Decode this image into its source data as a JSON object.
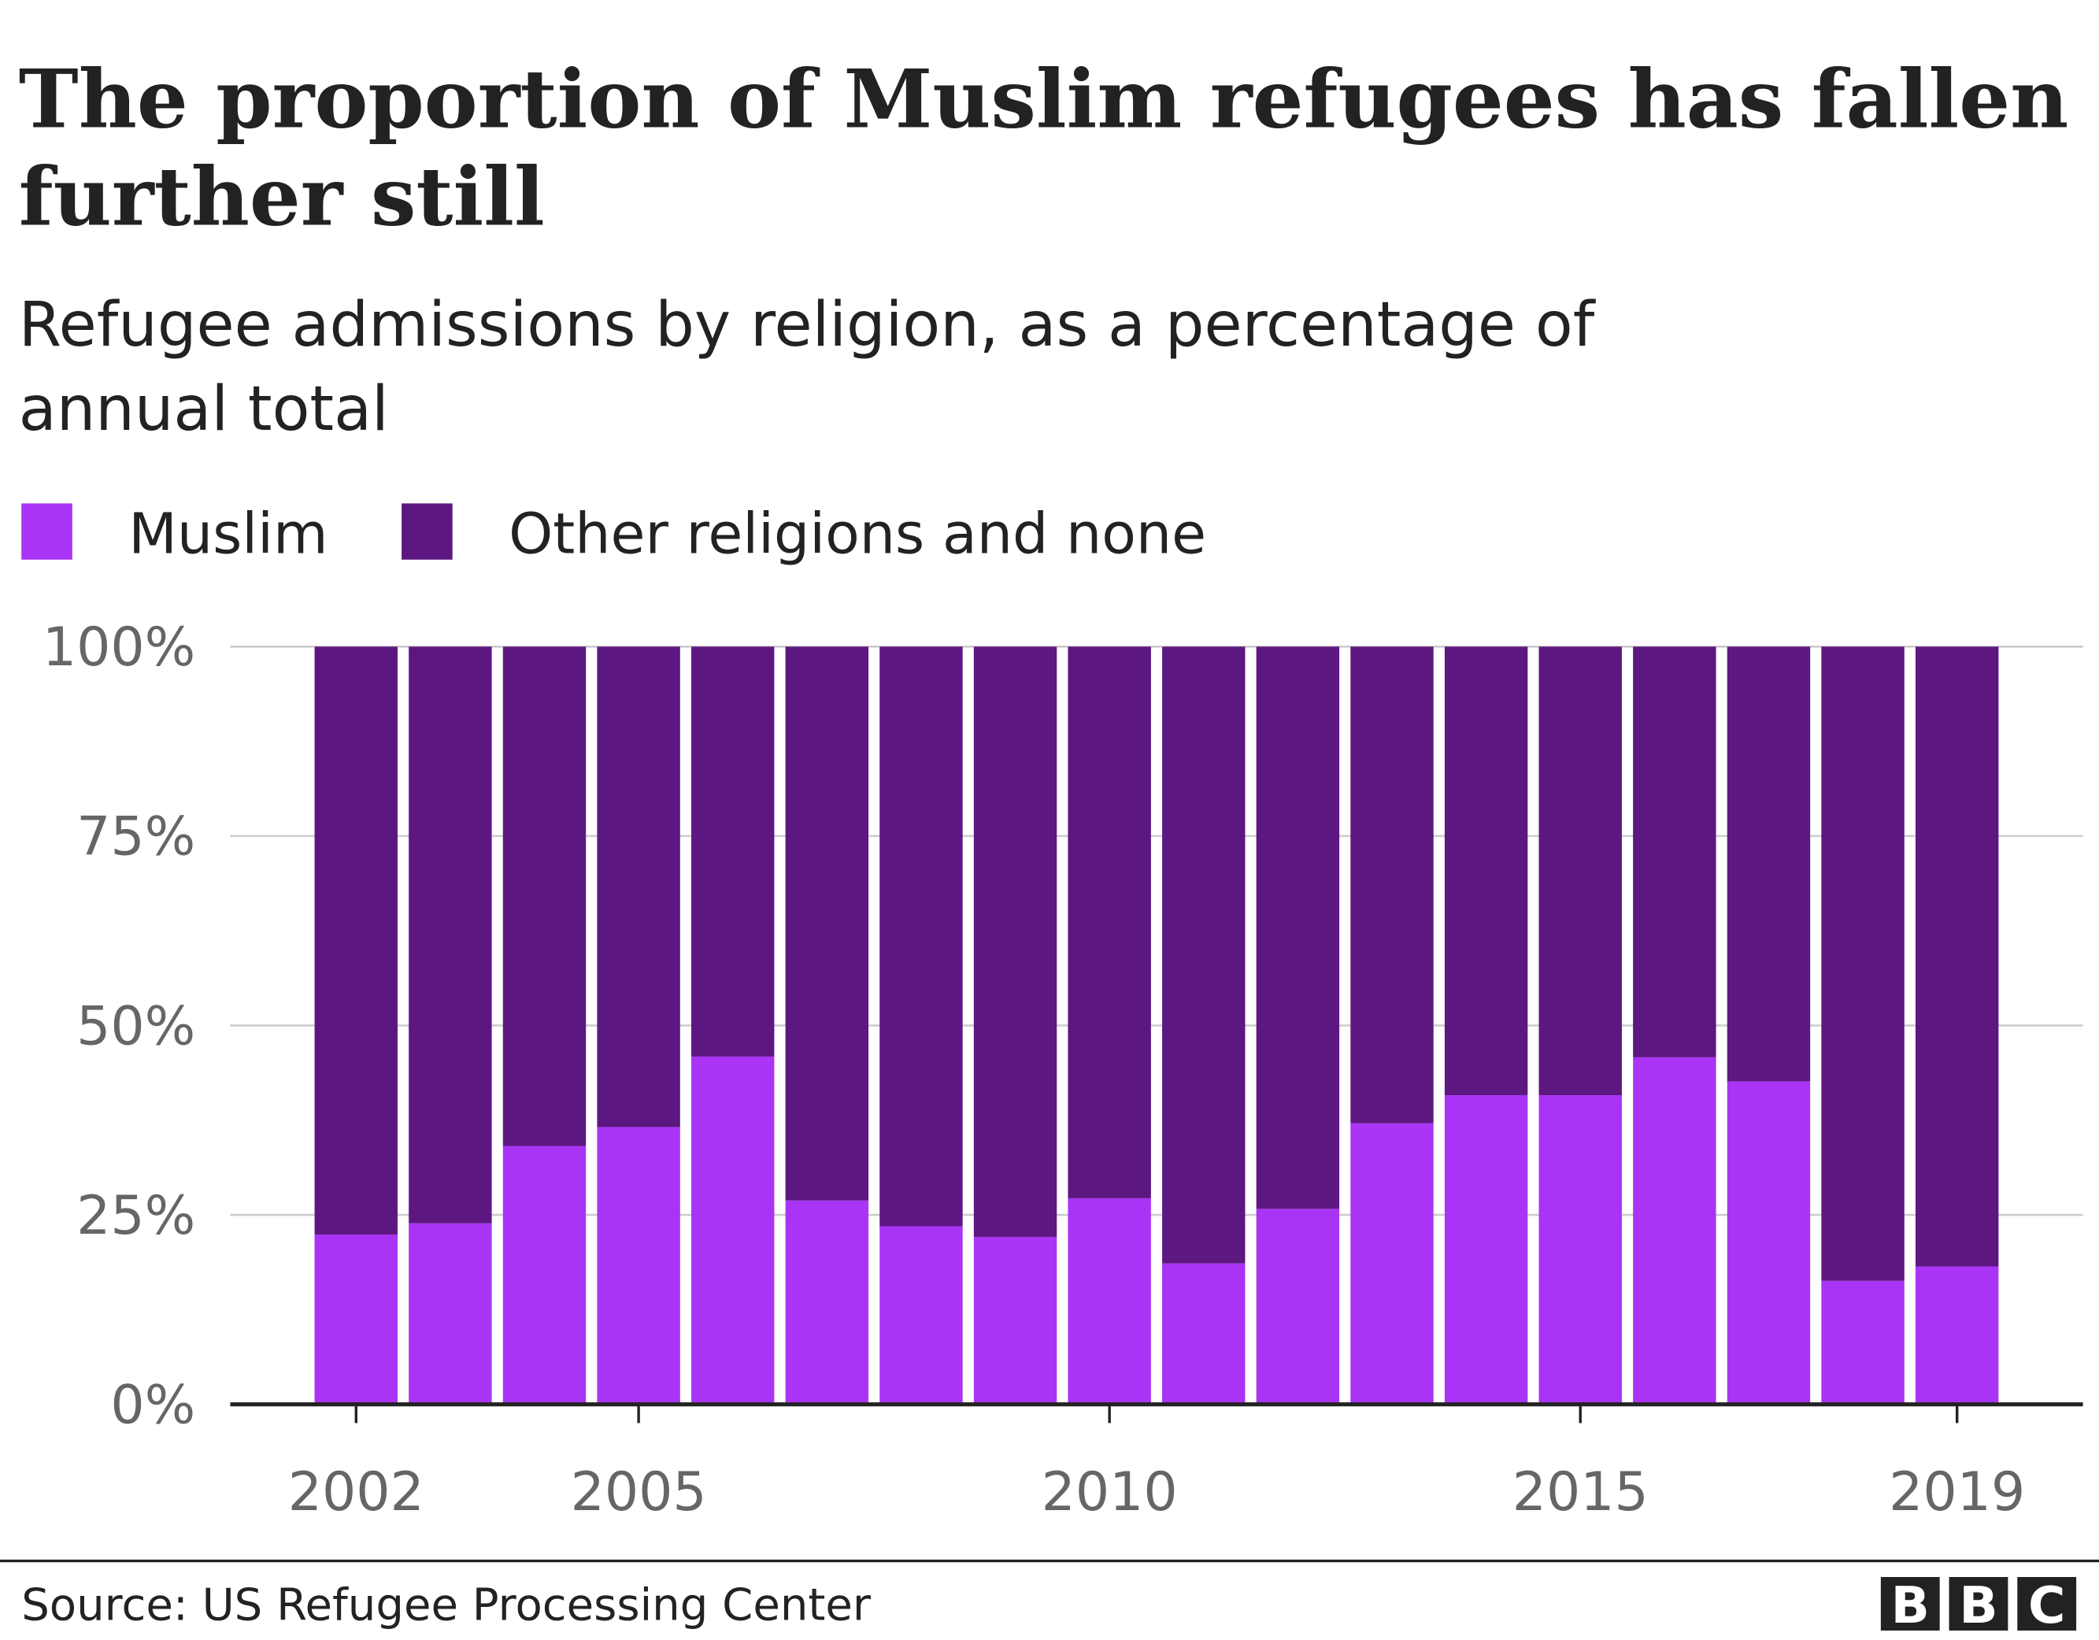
{
  "chart_data": {
    "type": "bar",
    "stacked": true,
    "title": "The proportion of Muslim refugees has fallen further still",
    "title_lines": [
      "The proportion of Muslim refugees has fallen",
      "further still"
    ],
    "subtitle": "Refugee admissions by religion, as a percentage of annual total",
    "subtitle_lines": [
      "Refugee admissions by religion, as a percentage of",
      "annual total"
    ],
    "categories": [
      2002,
      2003,
      2004,
      2005,
      2006,
      2007,
      2008,
      2009,
      2010,
      2011,
      2012,
      2013,
      2014,
      2015,
      2016,
      2017,
      2018,
      2019
    ],
    "x_tick_labels": [
      "2002",
      "2005",
      "2010",
      "2015",
      "2019"
    ],
    "y_tick_labels": [
      "0%",
      "25%",
      "50%",
      "75%",
      "100%"
    ],
    "ylim": [
      0,
      100
    ],
    "grid": true,
    "legend_placement": "top-left",
    "series": [
      {
        "name": "Muslim",
        "color": "#a934f5",
        "values": [
          22.4,
          23.9,
          34.1,
          36.6,
          45.9,
          26.9,
          23.5,
          22.1,
          27.2,
          18.6,
          25.8,
          37.1,
          40.8,
          40.8,
          45.8,
          42.6,
          16.3,
          18.2
        ]
      },
      {
        "name": "Other religions and none",
        "color": "#5d1780",
        "values": [
          77.6,
          76.1,
          65.9,
          63.4,
          54.1,
          73.1,
          76.5,
          77.9,
          72.8,
          81.4,
          74.2,
          62.9,
          59.2,
          59.2,
          54.2,
          57.4,
          83.7,
          81.8
        ]
      }
    ]
  },
  "footer": {
    "source": "Source: US Refugee Processing Center",
    "logo": "BBC"
  }
}
